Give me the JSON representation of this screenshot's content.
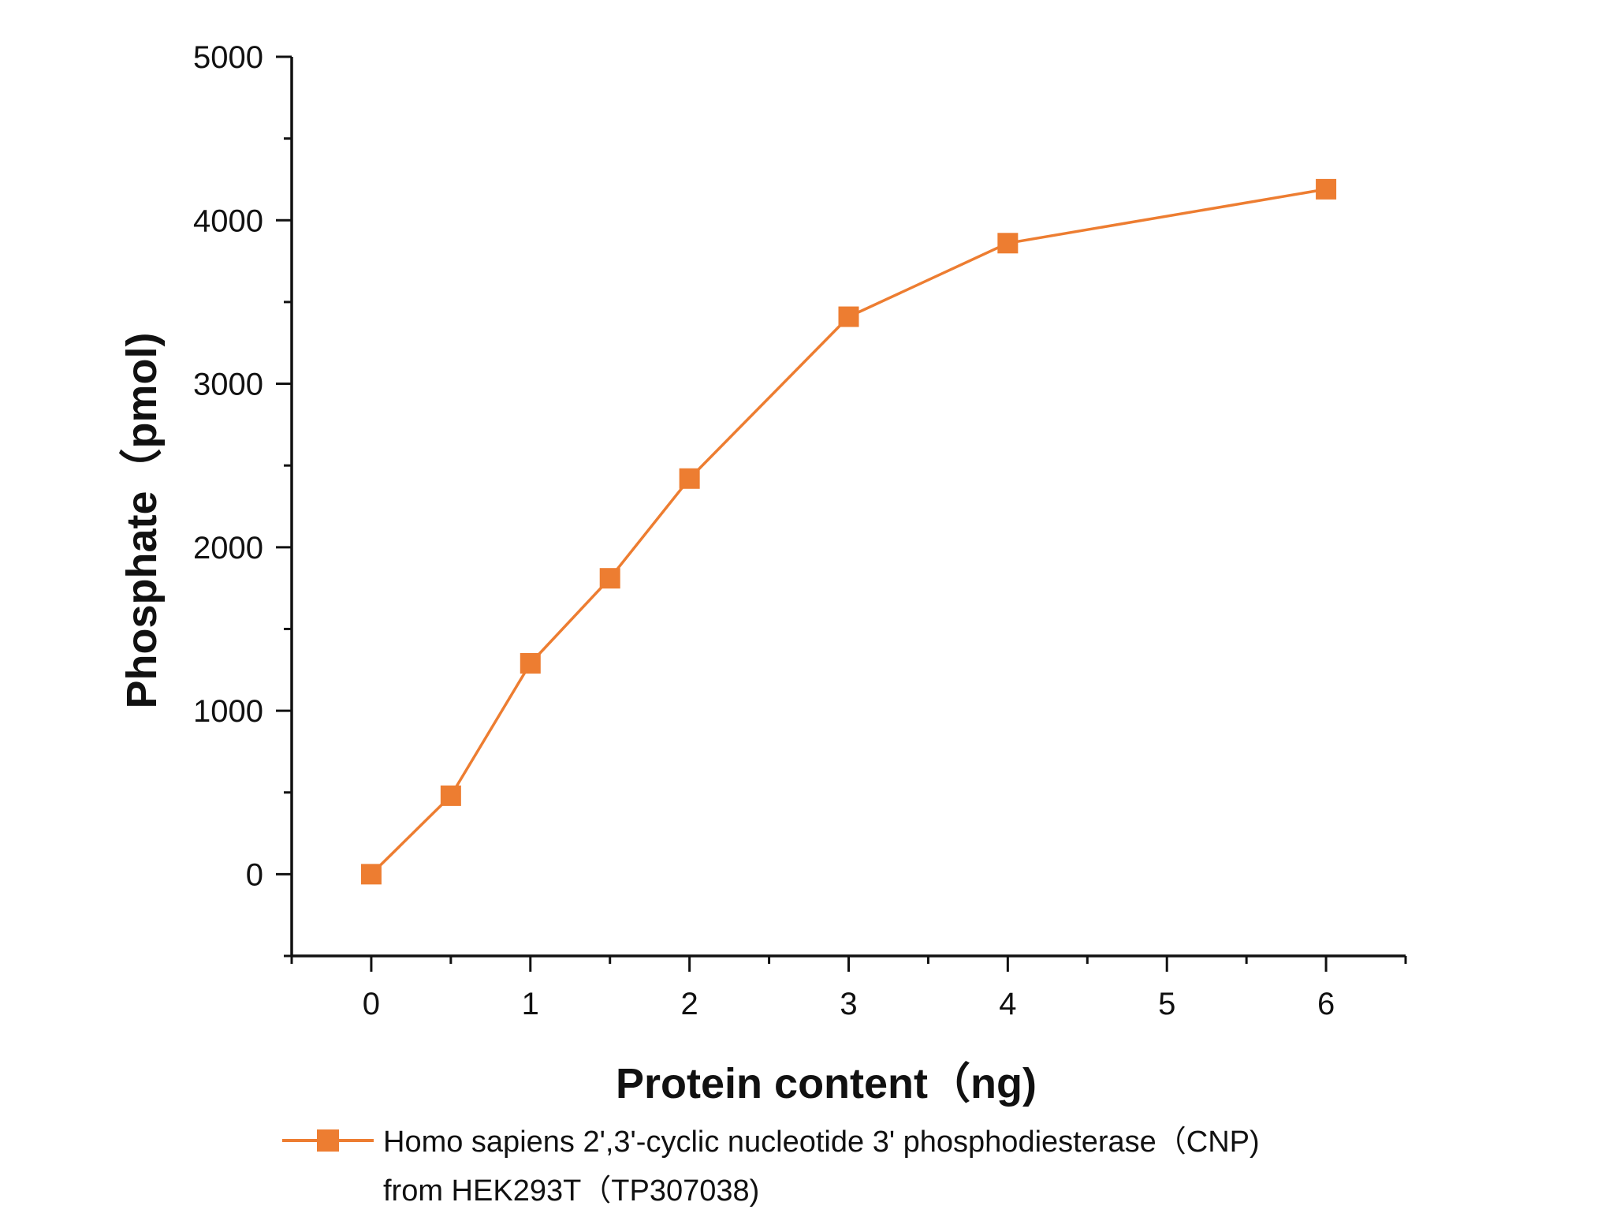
{
  "chart_data": {
    "type": "line",
    "xlabel": "Protein content（ng)",
    "ylabel": "Phosphate（pmol)",
    "xlim": [
      -0.5,
      6.5
    ],
    "ylim": [
      -500,
      5000
    ],
    "x_ticks": [
      "0",
      "1",
      "2",
      "3",
      "4",
      "5",
      "6"
    ],
    "y_ticks": [
      "0",
      "1000",
      "2000",
      "3000",
      "4000",
      "5000"
    ],
    "grid": false,
    "legend_position": "bottom",
    "series": [
      {
        "name": "Homo sapiens 2',3'-cyclic nucleotide 3' phosphodiesterase（CNP) from HEK293T（TP307038)",
        "color": "#ED7D31",
        "marker": "square",
        "x": [
          0,
          0.5,
          1,
          1.5,
          2,
          3,
          4,
          6
        ],
        "y": [
          0,
          480,
          1290,
          1810,
          2420,
          3410,
          3860,
          4190
        ]
      }
    ]
  },
  "legend": {
    "line1": "Homo sapiens 2',3'-cyclic nucleotide 3' phosphodiesterase（CNP)",
    "line2": "from HEK293T（TP307038)"
  }
}
